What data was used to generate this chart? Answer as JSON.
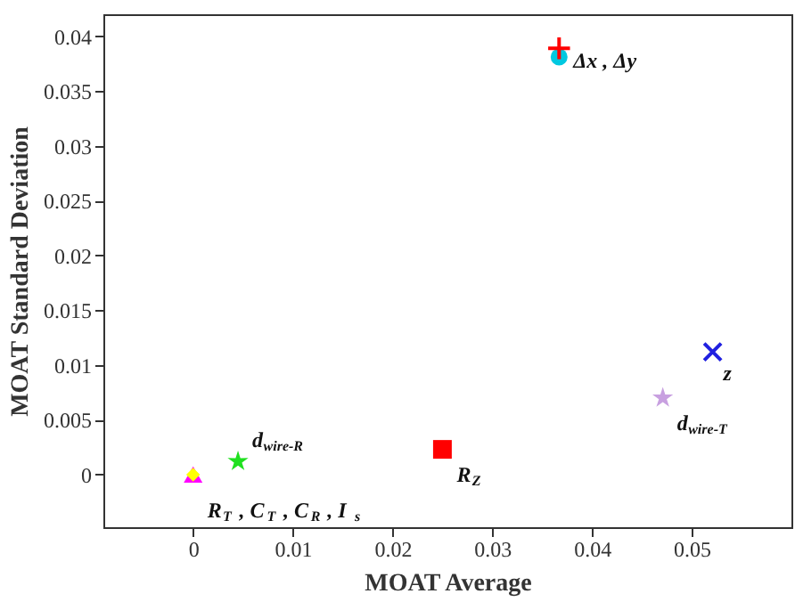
{
  "chart_data": {
    "type": "scatter",
    "xlabel": "MOAT Average",
    "ylabel": "MOAT Standard Deviation",
    "xlim": [
      -0.009,
      0.06
    ],
    "ylim": [
      -0.0048,
      0.042
    ],
    "xticks": [
      0,
      0.01,
      0.02,
      0.03,
      0.04,
      0.05
    ],
    "yticks": [
      0,
      0.005,
      0.01,
      0.015,
      0.02,
      0.025,
      0.03,
      0.035,
      0.04
    ],
    "grid": false,
    "series": [
      {
        "color": "#00c8e0",
        "marker": "circle",
        "x": [
          0.0367
        ],
        "values": [
          0.0381
        ]
      },
      {
        "color": "#ff0000",
        "marker": "cross",
        "x": [
          0.0367
        ],
        "values": [
          0.0389
        ]
      },
      {
        "color": "#2020e0",
        "marker": "x",
        "x": [
          0.0521
        ],
        "values": [
          0.0112
        ]
      },
      {
        "color": "#c8a0e0",
        "marker": "star",
        "x": [
          0.0471
        ],
        "values": [
          0.007
        ]
      },
      {
        "color": "#ff0000",
        "marker": "square",
        "x": [
          0.025
        ],
        "values": [
          0.0023
        ]
      },
      {
        "color": "#20e020",
        "marker": "star",
        "x": [
          0.0045
        ],
        "values": [
          0.0012
        ]
      },
      {
        "color": "#ff00ff",
        "marker": "triangle",
        "x": [
          0
        ],
        "values": [
          0
        ]
      },
      {
        "color": "#ffff00",
        "marker": "diamond",
        "x": [
          0
        ],
        "values": [
          0
        ]
      }
    ],
    "annotations": [
      {
        "text": "Δx , Δy",
        "x": 0.0367,
        "y": 0.0381
      },
      {
        "text": "z",
        "x": 0.0521,
        "y": 0.0112
      },
      {
        "text": "d$_{wire-T}$",
        "x": 0.0471,
        "y": 0.007
      },
      {
        "text": "R$_{Z}$",
        "x": 0.025,
        "y": 0.0023
      },
      {
        "text": "d$_{wire-R}$",
        "x": 0.0045,
        "y": 0.0012
      },
      {
        "text": "R$_{T}$ , C$_{T}$ , C$_{R}$ , I$_{s}$",
        "x": 0,
        "y": 0
      }
    ]
  }
}
